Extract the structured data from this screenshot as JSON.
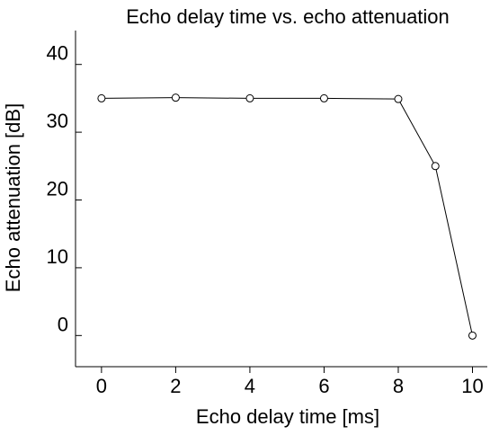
{
  "chart_data": {
    "type": "line",
    "title": "Echo delay time vs. echo attenuation",
    "xlabel": "Echo delay time [ms]",
    "ylabel": "Echo attenuation [dB]",
    "x": [
      0,
      2,
      4,
      6,
      8,
      9,
      10
    ],
    "series": [
      {
        "values": [
          35,
          35.1,
          35,
          35,
          34.9,
          25,
          0
        ]
      }
    ],
    "xlim": [
      -0.7,
      10.4
    ],
    "ylim": [
      -4.6,
      45
    ],
    "xticks": [
      0,
      2,
      4,
      6,
      8,
      10
    ],
    "yticks": [
      0,
      10,
      20,
      30,
      40
    ],
    "xtick_labels": [
      "0",
      "2",
      "4",
      "6",
      "8",
      "10"
    ],
    "ytick_labels": [
      "0",
      "10",
      "20",
      "30",
      "40"
    ],
    "grid": false,
    "marker": "open-circle",
    "line_color": "#000000",
    "marker_fill": "#ffffff"
  }
}
